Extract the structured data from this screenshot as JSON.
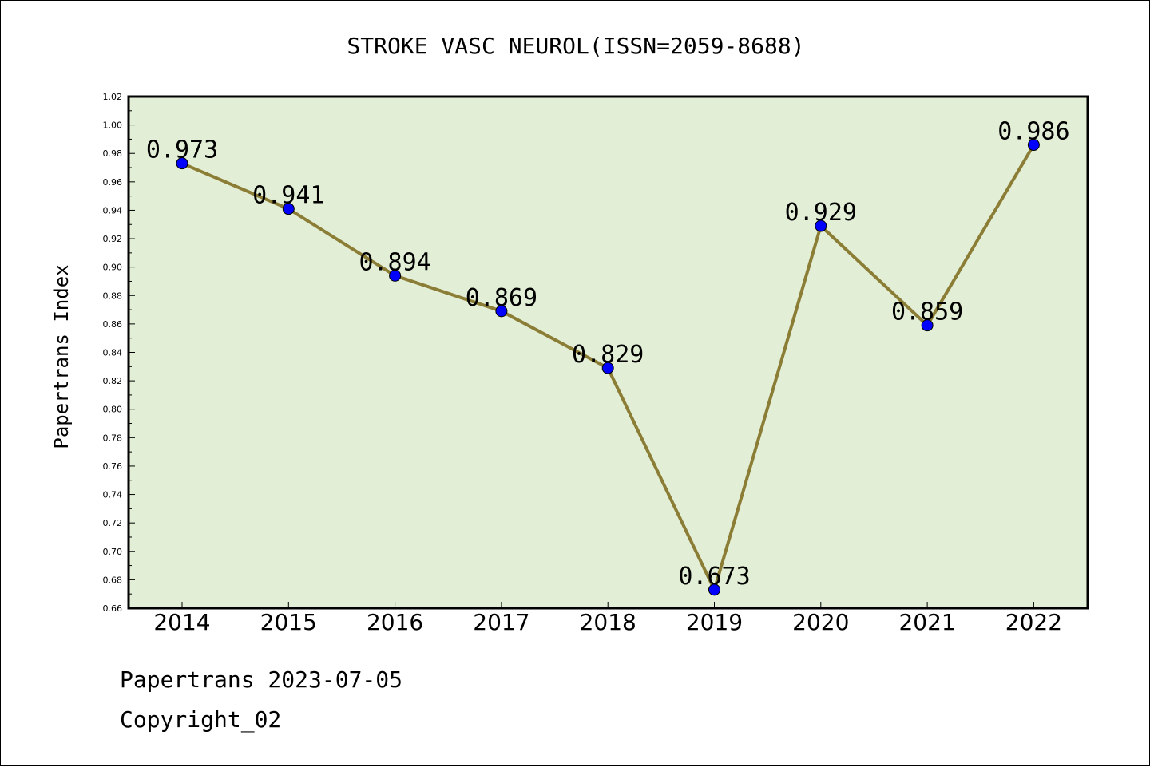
{
  "chart_data": {
    "type": "line",
    "title": "STROKE VASC NEUROL(ISSN=2059-8688)",
    "xlabel": "",
    "ylabel": "Papertrans Index",
    "categories": [
      "2014",
      "2015",
      "2016",
      "2017",
      "2018",
      "2019",
      "2020",
      "2021",
      "2022"
    ],
    "values": [
      0.973,
      0.941,
      0.894,
      0.869,
      0.829,
      0.673,
      0.929,
      0.859,
      0.986
    ],
    "data_labels": [
      "0.973",
      "0.941",
      "0.894",
      "0.869",
      "0.829",
      "0.673",
      "0.929",
      "0.859",
      "0.986"
    ],
    "ylim": [
      0.66,
      1.02
    ],
    "yticks": [
      "0.66",
      "0.68",
      "0.70",
      "0.72",
      "0.74",
      "0.76",
      "0.78",
      "0.80",
      "0.82",
      "0.84",
      "0.86",
      "0.88",
      "0.90",
      "0.92",
      "0.94",
      "0.96",
      "0.98",
      "1.00",
      "1.02"
    ],
    "grid": false,
    "colors": {
      "plot_background": "#e2efd6",
      "line": "#8b7d35",
      "marker": "#0000ff"
    }
  },
  "footer": {
    "line1": "Papertrans 2023-07-05",
    "line2": "Copyright_02"
  }
}
